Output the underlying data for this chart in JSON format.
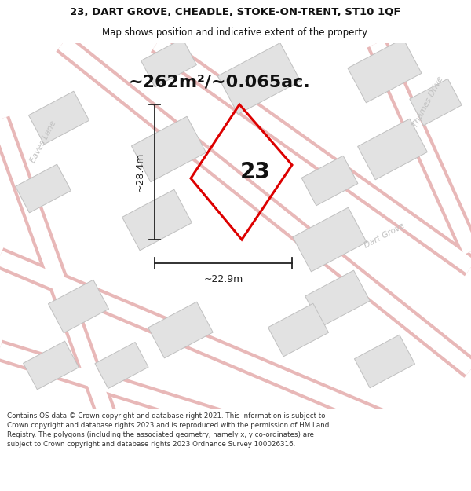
{
  "title_line1": "23, DART GROVE, CHEADLE, STOKE-ON-TRENT, ST10 1QF",
  "title_line2": "Map shows position and indicative extent of the property.",
  "area_text": "~262m²/~0.065ac.",
  "dim_vertical": "~28.4m",
  "dim_horizontal": "~22.9m",
  "plot_number": "23",
  "footer_text": "Contains OS data © Crown copyright and database right 2021. This information is subject to Crown copyright and database rights 2023 and is reproduced with the permission of HM Land Registry. The polygons (including the associated geometry, namely x, y co-ordinates) are subject to Crown copyright and database rights 2023 Ordnance Survey 100026316.",
  "bg_color": "#f8f8f8",
  "building_fill": "#e2e2e2",
  "building_edge": "#c0c0c0",
  "road_fill": "#ffffff",
  "road_outline": "#e8b8b8",
  "plot_color": "#dd0000",
  "street_label_color": "#c0c0c0",
  "dim_line_color": "#222222",
  "text_color": "#111111",
  "header_bg": "#ffffff",
  "footer_bg": "#ffffff"
}
